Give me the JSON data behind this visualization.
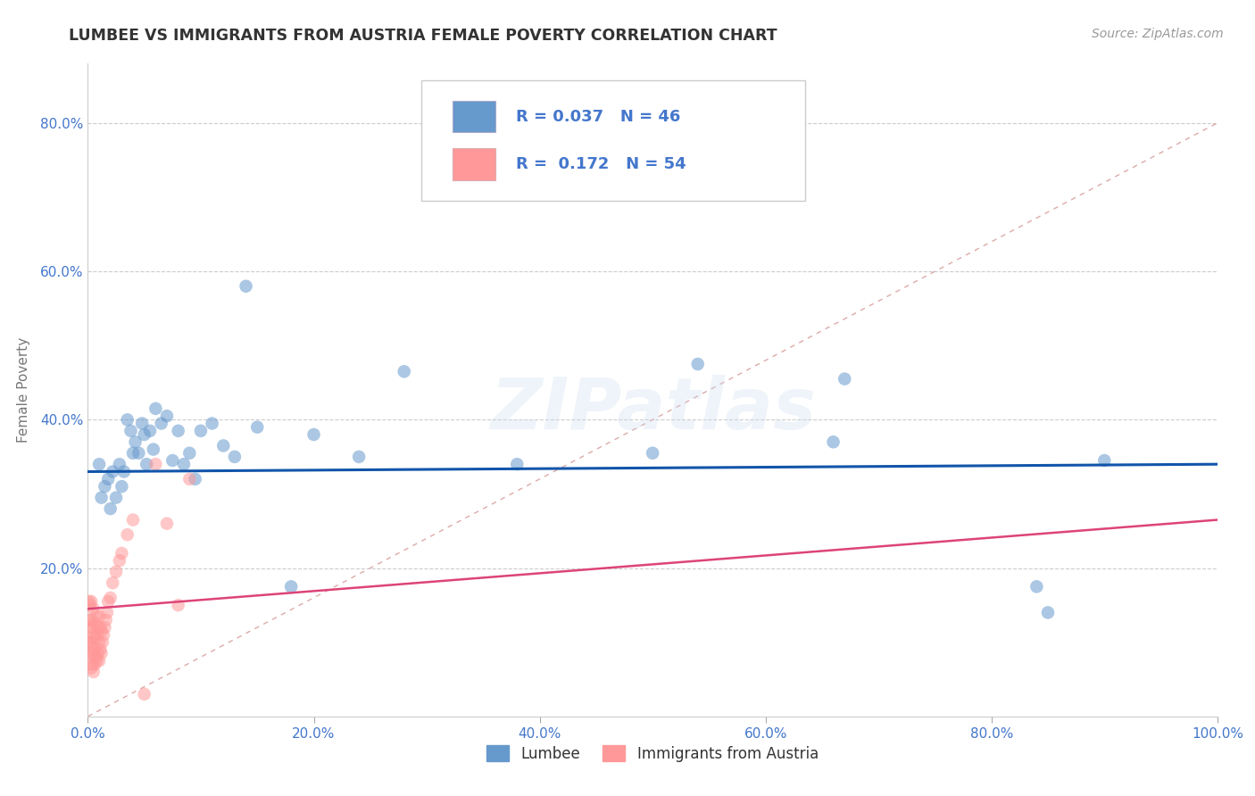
{
  "title": "LUMBEE VS IMMIGRANTS FROM AUSTRIA FEMALE POVERTY CORRELATION CHART",
  "source_text": "Source: ZipAtlas.com",
  "ylabel": "Female Poverty",
  "legend_label_1": "Lumbee",
  "legend_label_2": "Immigrants from Austria",
  "R1": 0.037,
  "N1": 46,
  "R2": 0.172,
  "N2": 54,
  "color1": "#6699CC",
  "color2": "#FF9999",
  "trend_color1": "#1155AA",
  "trend_color2": "#DD4477",
  "diag_color": "#DDAAAA",
  "background_color": "#FFFFFF",
  "grid_color": "#CCCCCC",
  "title_color": "#333333",
  "axis_label_color": "#4477CC",
  "lumbee_x": [
    0.01,
    0.012,
    0.015,
    0.018,
    0.02,
    0.022,
    0.025,
    0.028,
    0.03,
    0.032,
    0.035,
    0.038,
    0.04,
    0.042,
    0.045,
    0.048,
    0.05,
    0.052,
    0.055,
    0.058,
    0.06,
    0.065,
    0.07,
    0.075,
    0.08,
    0.085,
    0.09,
    0.095,
    0.1,
    0.11,
    0.12,
    0.13,
    0.14,
    0.15,
    0.18,
    0.2,
    0.24,
    0.28,
    0.38,
    0.5,
    0.54,
    0.66,
    0.67,
    0.84,
    0.85,
    0.9
  ],
  "lumbee_y": [
    0.34,
    0.295,
    0.31,
    0.32,
    0.28,
    0.33,
    0.295,
    0.34,
    0.31,
    0.33,
    0.4,
    0.385,
    0.355,
    0.37,
    0.355,
    0.395,
    0.38,
    0.34,
    0.385,
    0.36,
    0.415,
    0.395,
    0.405,
    0.345,
    0.385,
    0.34,
    0.355,
    0.32,
    0.385,
    0.395,
    0.365,
    0.35,
    0.58,
    0.39,
    0.175,
    0.38,
    0.35,
    0.465,
    0.34,
    0.355,
    0.475,
    0.37,
    0.455,
    0.175,
    0.14,
    0.345
  ],
  "austria_x": [
    0.001,
    0.001,
    0.001,
    0.002,
    0.002,
    0.002,
    0.002,
    0.003,
    0.003,
    0.003,
    0.003,
    0.003,
    0.004,
    0.004,
    0.004,
    0.005,
    0.005,
    0.005,
    0.005,
    0.006,
    0.006,
    0.006,
    0.007,
    0.007,
    0.007,
    0.008,
    0.008,
    0.009,
    0.009,
    0.01,
    0.01,
    0.01,
    0.011,
    0.011,
    0.012,
    0.012,
    0.013,
    0.014,
    0.015,
    0.016,
    0.017,
    0.018,
    0.02,
    0.022,
    0.025,
    0.028,
    0.03,
    0.035,
    0.04,
    0.05,
    0.06,
    0.07,
    0.08,
    0.09
  ],
  "austria_y": [
    0.1,
    0.155,
    0.13,
    0.08,
    0.1,
    0.12,
    0.15,
    0.065,
    0.085,
    0.105,
    0.13,
    0.155,
    0.07,
    0.095,
    0.12,
    0.06,
    0.085,
    0.11,
    0.145,
    0.07,
    0.09,
    0.125,
    0.08,
    0.105,
    0.135,
    0.075,
    0.11,
    0.085,
    0.12,
    0.075,
    0.1,
    0.135,
    0.09,
    0.12,
    0.085,
    0.115,
    0.1,
    0.11,
    0.12,
    0.13,
    0.14,
    0.155,
    0.16,
    0.18,
    0.195,
    0.21,
    0.22,
    0.245,
    0.265,
    0.03,
    0.34,
    0.26,
    0.15,
    0.32
  ],
  "xlim": [
    0.0,
    1.0
  ],
  "ylim": [
    0.0,
    0.88
  ],
  "xticks": [
    0.0,
    0.2,
    0.4,
    0.6,
    0.8,
    1.0
  ],
  "yticks": [
    0.2,
    0.4,
    0.6,
    0.8
  ],
  "xtick_labels": [
    "0.0%",
    "20.0%",
    "40.0%",
    "60.0%",
    "80.0%",
    "100.0%"
  ],
  "ytick_labels": [
    "20.0%",
    "40.0%",
    "60.0%",
    "80.0%"
  ],
  "lumbee_trend": [
    0.33,
    0.34
  ],
  "austria_trend": [
    0.145,
    0.265
  ],
  "diag_line": [
    [
      0.0,
      0.0
    ],
    [
      1.0,
      0.8
    ]
  ]
}
